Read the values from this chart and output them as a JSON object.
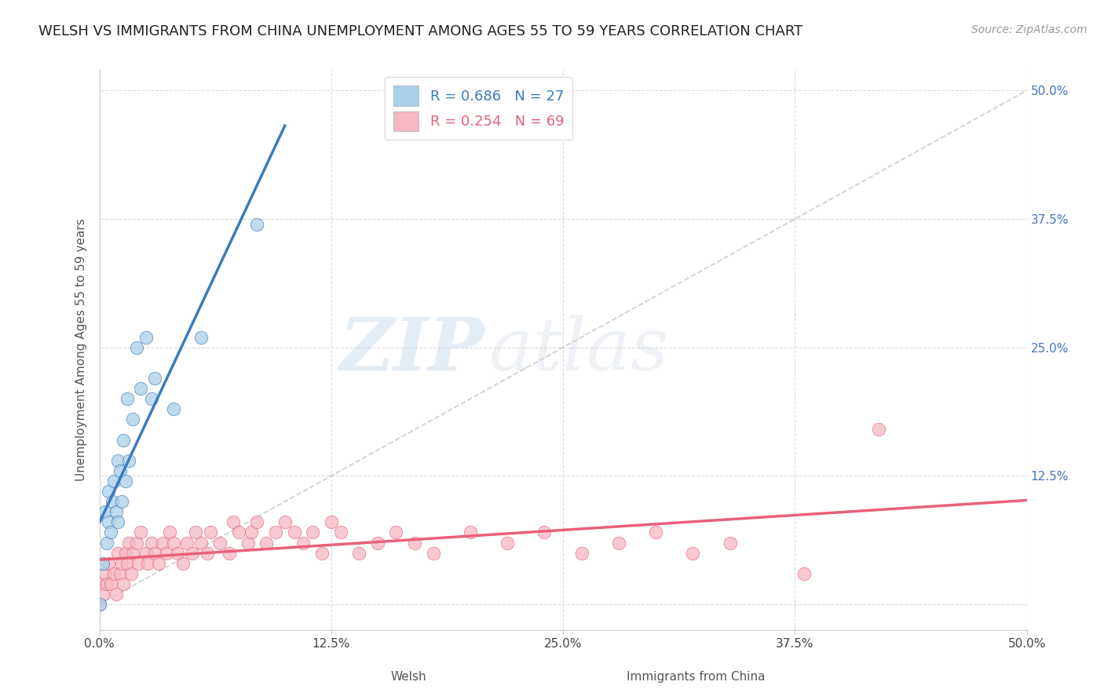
{
  "title": "WELSH VS IMMIGRANTS FROM CHINA UNEMPLOYMENT AMONG AGES 55 TO 59 YEARS CORRELATION CHART",
  "source": "Source: ZipAtlas.com",
  "ylabel": "Unemployment Among Ages 55 to 59 years",
  "xlabel_welsh": "Welsh",
  "xlabel_china": "Immigrants from China",
  "xlim": [
    0.0,
    0.5
  ],
  "ylim": [
    -0.025,
    0.52
  ],
  "right_yticks": [
    0.0,
    0.125,
    0.25,
    0.375,
    0.5
  ],
  "right_yticklabels": [
    "",
    "12.5%",
    "25.0%",
    "37.5%",
    "50.0%"
  ],
  "xticks": [
    0.0,
    0.125,
    0.25,
    0.375,
    0.5
  ],
  "xticklabels": [
    "0.0%",
    "12.5%",
    "25.0%",
    "37.5%",
    "50.0%"
  ],
  "welsh_R": 0.686,
  "welsh_N": 27,
  "china_R": 0.254,
  "china_N": 69,
  "welsh_color": "#aacfe8",
  "china_color": "#f5b8c4",
  "welsh_line_color": "#3a7bbf",
  "china_line_color": "#e8607a",
  "ref_line_color": "#c8c8c8",
  "welsh_x": [
    0.0,
    0.002,
    0.003,
    0.004,
    0.005,
    0.005,
    0.006,
    0.007,
    0.008,
    0.009,
    0.01,
    0.01,
    0.011,
    0.012,
    0.013,
    0.014,
    0.015,
    0.016,
    0.018,
    0.02,
    0.022,
    0.025,
    0.028,
    0.03,
    0.04,
    0.055,
    0.085
  ],
  "welsh_y": [
    0.0,
    0.04,
    0.09,
    0.06,
    0.11,
    0.08,
    0.07,
    0.1,
    0.12,
    0.09,
    0.14,
    0.08,
    0.13,
    0.1,
    0.16,
    0.12,
    0.2,
    0.14,
    0.18,
    0.25,
    0.21,
    0.26,
    0.2,
    0.22,
    0.19,
    0.26,
    0.37
  ],
  "china_x": [
    0.0,
    0.0,
    0.002,
    0.003,
    0.004,
    0.005,
    0.006,
    0.008,
    0.009,
    0.01,
    0.011,
    0.012,
    0.013,
    0.014,
    0.015,
    0.016,
    0.017,
    0.018,
    0.02,
    0.021,
    0.022,
    0.025,
    0.026,
    0.028,
    0.03,
    0.032,
    0.034,
    0.036,
    0.038,
    0.04,
    0.042,
    0.045,
    0.047,
    0.05,
    0.052,
    0.055,
    0.058,
    0.06,
    0.065,
    0.07,
    0.072,
    0.075,
    0.08,
    0.082,
    0.085,
    0.09,
    0.095,
    0.1,
    0.105,
    0.11,
    0.115,
    0.12,
    0.125,
    0.13,
    0.14,
    0.15,
    0.16,
    0.17,
    0.18,
    0.2,
    0.22,
    0.24,
    0.26,
    0.28,
    0.3,
    0.32,
    0.34,
    0.38,
    0.42
  ],
  "china_y": [
    0.0,
    0.02,
    0.01,
    0.03,
    0.02,
    0.04,
    0.02,
    0.03,
    0.01,
    0.05,
    0.03,
    0.04,
    0.02,
    0.05,
    0.04,
    0.06,
    0.03,
    0.05,
    0.06,
    0.04,
    0.07,
    0.05,
    0.04,
    0.06,
    0.05,
    0.04,
    0.06,
    0.05,
    0.07,
    0.06,
    0.05,
    0.04,
    0.06,
    0.05,
    0.07,
    0.06,
    0.05,
    0.07,
    0.06,
    0.05,
    0.08,
    0.07,
    0.06,
    0.07,
    0.08,
    0.06,
    0.07,
    0.08,
    0.07,
    0.06,
    0.07,
    0.05,
    0.08,
    0.07,
    0.05,
    0.06,
    0.07,
    0.06,
    0.05,
    0.07,
    0.06,
    0.07,
    0.05,
    0.06,
    0.07,
    0.05,
    0.06,
    0.03,
    0.17
  ],
  "title_fontsize": 13,
  "source_fontsize": 10,
  "label_fontsize": 11,
  "tick_fontsize": 11,
  "legend_fontsize": 13,
  "watermark_zip": "ZIP",
  "watermark_atlas": "atlas",
  "background_color": "#ffffff",
  "grid_color": "#d8d8d8"
}
